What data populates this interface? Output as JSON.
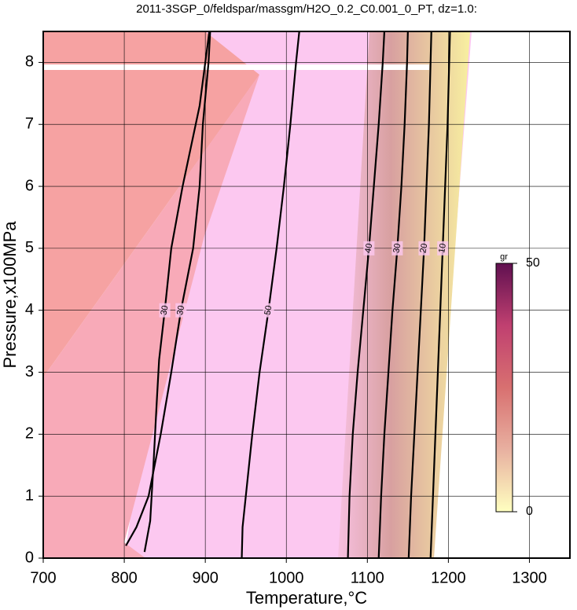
{
  "chart_data": {
    "type": "contour",
    "title": "2011-3SGP_0/feldspar/massgm/H2O_0.2_C0.001_0_PT, dz=1.0:",
    "x_label": "Temperature,°C",
    "y_label": "Pressure,x100MPa",
    "xlim": [
      700,
      1350
    ],
    "ylim": [
      0,
      8.5
    ],
    "xticks": [
      700,
      800,
      900,
      1000,
      1100,
      1200,
      1300
    ],
    "yticks": [
      0,
      1,
      2,
      3,
      4,
      5,
      6,
      7,
      8
    ],
    "grid": true,
    "series": [
      {
        "name": "30",
        "color": "#000000",
        "x": [
          802,
          815,
          830,
          845,
          858,
          870,
          885,
          893,
          897,
          904,
          906
        ],
        "values": [
          0.2,
          0.5,
          1,
          2,
          3,
          4,
          5,
          6,
          7,
          8,
          8.5
        ]
      },
      {
        "name": "30",
        "color": "#000000",
        "x": [
          825,
          832,
          836,
          840,
          843,
          850,
          858,
          872,
          893,
          905
        ],
        "values": [
          0.1,
          0.6,
          1.5,
          2.5,
          3.2,
          4,
          5,
          6,
          7.3,
          8.5
        ]
      },
      {
        "name": "50",
        "color": "#000000",
        "x": [
          945,
          946,
          950,
          958,
          967,
          978,
          988,
          997,
          1005,
          1012,
          1016
        ],
        "values": [
          0,
          0.5,
          1,
          2,
          3,
          4,
          5,
          6,
          7,
          8,
          8.5
        ]
      },
      {
        "name": "40",
        "color": "#000000",
        "x": [
          1076,
          1078,
          1082,
          1088,
          1095,
          1102,
          1108,
          1114,
          1119,
          1121
        ],
        "values": [
          0,
          1,
          2,
          3,
          4,
          5,
          6,
          7,
          8,
          8.5
        ]
      },
      {
        "name": "30",
        "color": "#000000",
        "x": [
          1114,
          1117,
          1121,
          1126,
          1131,
          1137,
          1142,
          1146,
          1149,
          1150
        ],
        "values": [
          0,
          1,
          2,
          3,
          4,
          5,
          6,
          7,
          8,
          8.5
        ]
      },
      {
        "name": "20",
        "color": "#000000",
        "x": [
          1151,
          1154,
          1158,
          1162,
          1166,
          1170,
          1173,
          1176,
          1178,
          1179
        ],
        "values": [
          0,
          1,
          2,
          3,
          4,
          5,
          6,
          7,
          8,
          8.5
        ]
      },
      {
        "name": "10",
        "color": "#000000",
        "x": [
          1178,
          1181,
          1184,
          1187,
          1190,
          1193,
          1196,
          1199,
          1201,
          1202
        ],
        "values": [
          0,
          1,
          2,
          3,
          4,
          5,
          6,
          7,
          8,
          8.5
        ]
      }
    ],
    "colorbar": {
      "label": "gr",
      "ticks": [
        0,
        50
      ],
      "colors": [
        "#ffffc0",
        "#e8b0a0",
        "#d87070",
        "#c04070",
        "#601050"
      ]
    }
  }
}
